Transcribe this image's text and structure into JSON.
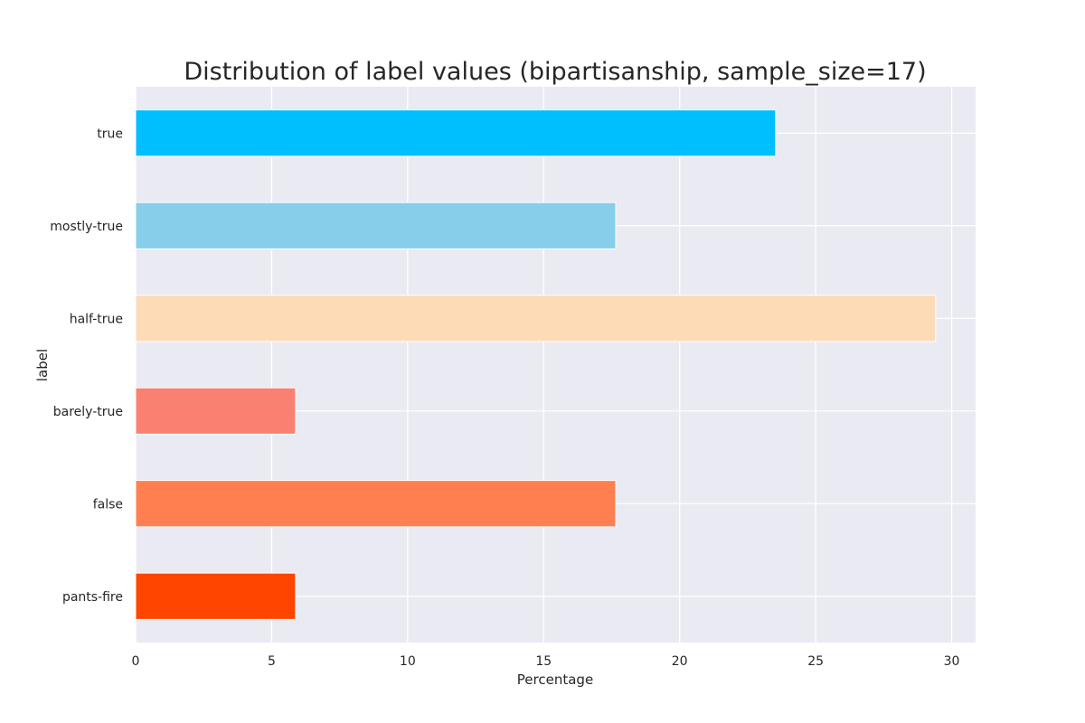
{
  "chart_data": {
    "type": "bar",
    "orientation": "horizontal",
    "title": "Distribution of label values (bipartisanship, sample_size=17)",
    "xlabel": "Percentage",
    "ylabel": "label",
    "categories": [
      "true",
      "mostly-true",
      "half-true",
      "barely-true",
      "false",
      "pants-fire"
    ],
    "values": [
      23.53,
      17.65,
      29.41,
      5.88,
      17.65,
      5.88
    ],
    "colors": [
      "#00bfff",
      "#87ceeb",
      "#fddbb7",
      "#fa8072",
      "#ff7f50",
      "#ff4500"
    ],
    "xlim": [
      0,
      30.88
    ],
    "xticks": [
      0,
      5,
      10,
      15,
      20,
      25,
      30
    ],
    "grid": true,
    "background": "#eaeaf2"
  }
}
